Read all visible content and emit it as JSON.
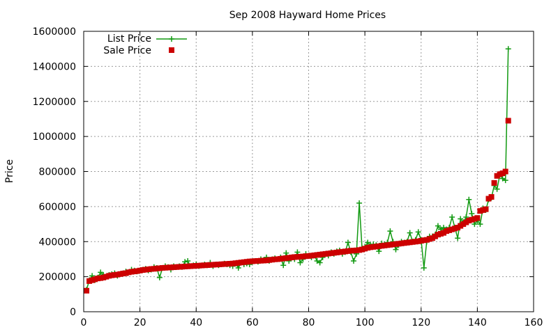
{
  "chart_data": {
    "type": "line",
    "title": "Sep 2008 Hayward Home Prices",
    "xlabel": "",
    "ylabel": "Price",
    "xlim": [
      0,
      160
    ],
    "ylim": [
      0,
      1600000
    ],
    "xticks": [
      0,
      20,
      40,
      60,
      80,
      100,
      120,
      140,
      160
    ],
    "yticks": [
      0,
      200000,
      400000,
      600000,
      800000,
      1000000,
      1200000,
      1400000,
      1600000
    ],
    "grid": true,
    "legend_position": "top-left",
    "series": [
      {
        "name": "List Price",
        "style": "line with plus markers",
        "color": "#119911",
        "x": [
          1,
          2,
          3,
          4,
          5,
          6,
          7,
          8,
          9,
          10,
          11,
          12,
          13,
          14,
          15,
          16,
          17,
          18,
          19,
          20,
          21,
          22,
          23,
          24,
          25,
          26,
          27,
          28,
          29,
          30,
          31,
          32,
          33,
          34,
          35,
          36,
          37,
          38,
          39,
          40,
          41,
          42,
          43,
          44,
          45,
          46,
          47,
          48,
          49,
          50,
          51,
          52,
          53,
          54,
          55,
          56,
          57,
          58,
          59,
          60,
          61,
          62,
          63,
          64,
          65,
          66,
          67,
          68,
          69,
          70,
          71,
          72,
          73,
          74,
          75,
          76,
          77,
          78,
          79,
          80,
          81,
          82,
          83,
          84,
          85,
          86,
          87,
          88,
          89,
          90,
          91,
          92,
          93,
          94,
          95,
          96,
          97,
          98,
          99,
          100,
          101,
          102,
          103,
          104,
          105,
          106,
          107,
          108,
          109,
          110,
          111,
          112,
          113,
          114,
          115,
          116,
          117,
          118,
          119,
          120,
          121,
          122,
          123,
          124,
          125,
          126,
          127,
          128,
          129,
          130,
          131,
          132,
          133,
          134,
          135,
          136,
          137,
          138,
          139,
          140,
          141,
          142,
          143,
          144,
          145,
          146,
          147,
          148,
          149,
          150,
          151
        ],
        "values": [
          125000,
          180000,
          205000,
          180000,
          195000,
          225000,
          210000,
          200000,
          210000,
          215000,
          220000,
          205000,
          215000,
          220000,
          230000,
          225000,
          240000,
          235000,
          230000,
          235000,
          240000,
          245000,
          235000,
          240000,
          255000,
          250000,
          195000,
          250000,
          260000,
          255000,
          240000,
          260000,
          255000,
          260000,
          255000,
          285000,
          290000,
          260000,
          265000,
          270000,
          260000,
          265000,
          270000,
          265000,
          280000,
          260000,
          270000,
          265000,
          270000,
          275000,
          270000,
          265000,
          260000,
          275000,
          250000,
          280000,
          270000,
          275000,
          270000,
          285000,
          290000,
          285000,
          300000,
          295000,
          310000,
          290000,
          300000,
          305000,
          300000,
          310000,
          265000,
          335000,
          290000,
          310000,
          300000,
          340000,
          280000,
          300000,
          330000,
          320000,
          310000,
          320000,
          290000,
          280000,
          310000,
          330000,
          320000,
          340000,
          330000,
          345000,
          350000,
          330000,
          340000,
          395000,
          340000,
          290000,
          330000,
          620000,
          360000,
          370000,
          395000,
          380000,
          385000,
          380000,
          345000,
          390000,
          385000,
          395000,
          460000,
          400000,
          355000,
          380000,
          400000,
          395000,
          400000,
          450000,
          400000,
          410000,
          455000,
          410000,
          250000,
          400000,
          430000,
          430000,
          440000,
          490000,
          470000,
          480000,
          470000,
          480000,
          540000,
          480000,
          420000,
          530000,
          510000,
          540000,
          640000,
          560000,
          500000,
          520000,
          500000,
          590000,
          580000,
          640000,
          650000,
          720000,
          700000,
          780000,
          760000,
          750000,
          1500000
        ]
      },
      {
        "name": "Sale Price",
        "style": "filled square markers",
        "color": "#cc0000",
        "x": [
          1,
          2,
          3,
          4,
          5,
          6,
          7,
          8,
          9,
          10,
          11,
          12,
          13,
          14,
          15,
          16,
          17,
          18,
          19,
          20,
          21,
          22,
          23,
          24,
          25,
          26,
          27,
          28,
          29,
          30,
          31,
          32,
          33,
          34,
          35,
          36,
          37,
          38,
          39,
          40,
          41,
          42,
          43,
          44,
          45,
          46,
          47,
          48,
          49,
          50,
          51,
          52,
          53,
          54,
          55,
          56,
          57,
          58,
          59,
          60,
          61,
          62,
          63,
          64,
          65,
          66,
          67,
          68,
          69,
          70,
          71,
          72,
          73,
          74,
          75,
          76,
          77,
          78,
          79,
          80,
          81,
          82,
          83,
          84,
          85,
          86,
          87,
          88,
          89,
          90,
          91,
          92,
          93,
          94,
          95,
          96,
          97,
          98,
          99,
          100,
          101,
          102,
          103,
          104,
          105,
          106,
          107,
          108,
          109,
          110,
          111,
          112,
          113,
          114,
          115,
          116,
          117,
          118,
          119,
          120,
          121,
          122,
          123,
          124,
          125,
          126,
          127,
          128,
          129,
          130,
          131,
          132,
          133,
          134,
          135,
          136,
          137,
          138,
          139,
          140,
          141,
          142,
          143,
          144,
          145,
          146,
          147,
          148,
          149,
          150,
          151
        ],
        "values": [
          120000,
          175000,
          180000,
          185000,
          190000,
          192000,
          195000,
          200000,
          205000,
          208000,
          210000,
          212000,
          215000,
          218000,
          220000,
          225000,
          228000,
          230000,
          232000,
          235000,
          238000,
          240000,
          242000,
          244000,
          245000,
          247000,
          248000,
          250000,
          251000,
          252000,
          253000,
          254000,
          255000,
          256000,
          257000,
          258000,
          259000,
          260000,
          261000,
          262000,
          263000,
          264000,
          265000,
          266000,
          267000,
          268000,
          269000,
          270000,
          271000,
          272000,
          273000,
          274000,
          275000,
          277000,
          279000,
          281000,
          283000,
          285000,
          287000,
          288000,
          289000,
          290000,
          291000,
          292000,
          293000,
          295000,
          297000,
          299000,
          300000,
          302000,
          304000,
          306000,
          308000,
          310000,
          312000,
          313000,
          314000,
          315000,
          317000,
          318000,
          320000,
          322000,
          324000,
          326000,
          328000,
          330000,
          332000,
          334000,
          336000,
          338000,
          340000,
          342000,
          344000,
          346000,
          348000,
          349000,
          350000,
          352000,
          355000,
          360000,
          365000,
          368000,
          370000,
          372000,
          374000,
          376000,
          378000,
          380000,
          382000,
          384000,
          386000,
          388000,
          390000,
          392000,
          394000,
          396000,
          398000,
          400000,
          402000,
          405000,
          408000,
          410000,
          415000,
          420000,
          430000,
          440000,
          445000,
          450000,
          460000,
          465000,
          470000,
          475000,
          480000,
          490000,
          500000,
          510000,
          520000,
          525000,
          530000,
          535000,
          575000,
          580000,
          585000,
          645000,
          655000,
          735000,
          775000,
          785000,
          790000,
          800000,
          1090000
        ]
      }
    ]
  }
}
